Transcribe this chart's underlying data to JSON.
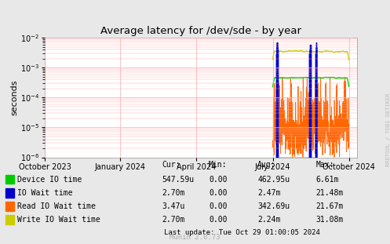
{
  "title": "Average latency for /dev/sde - by year",
  "ylabel": "seconds",
  "background_color": "#e8e8e8",
  "plot_bg_color": "#ffffff",
  "grid_color": "#ffaaaa",
  "x_tick_labels": [
    "October 2023",
    "January 2024",
    "April 2024",
    "July 2024",
    "October 2024"
  ],
  "x_tick_positions": [
    0.0,
    0.247,
    0.496,
    0.745,
    0.994
  ],
  "ylim": [
    1e-06,
    0.01
  ],
  "legend_entries": [
    {
      "label": "Device IO time",
      "color": "#00cc00"
    },
    {
      "label": "IO Wait time",
      "color": "#0000cc"
    },
    {
      "label": "Read IO Wait time",
      "color": "#ff6600"
    },
    {
      "label": "Write IO Wait time",
      "color": "#cccc00"
    }
  ],
  "legend_stats": {
    "headers": [
      "Cur:",
      "Min:",
      "Avg:",
      "Max:"
    ],
    "rows": [
      [
        "547.59u",
        "0.00",
        "462.95u",
        "6.61m"
      ],
      [
        "2.70m",
        "0.00",
        "2.47m",
        "21.48m"
      ],
      [
        "3.47u",
        "0.00",
        "342.69u",
        "21.67m"
      ],
      [
        "2.70m",
        "0.00",
        "2.24m",
        "31.08m"
      ]
    ]
  },
  "footer": "Last update: Tue Oct 29 01:00:05 2024",
  "munin_version": "Munin 2.0.73",
  "rrdtool_label": "RRDTOOL / TOBI OETIKER"
}
